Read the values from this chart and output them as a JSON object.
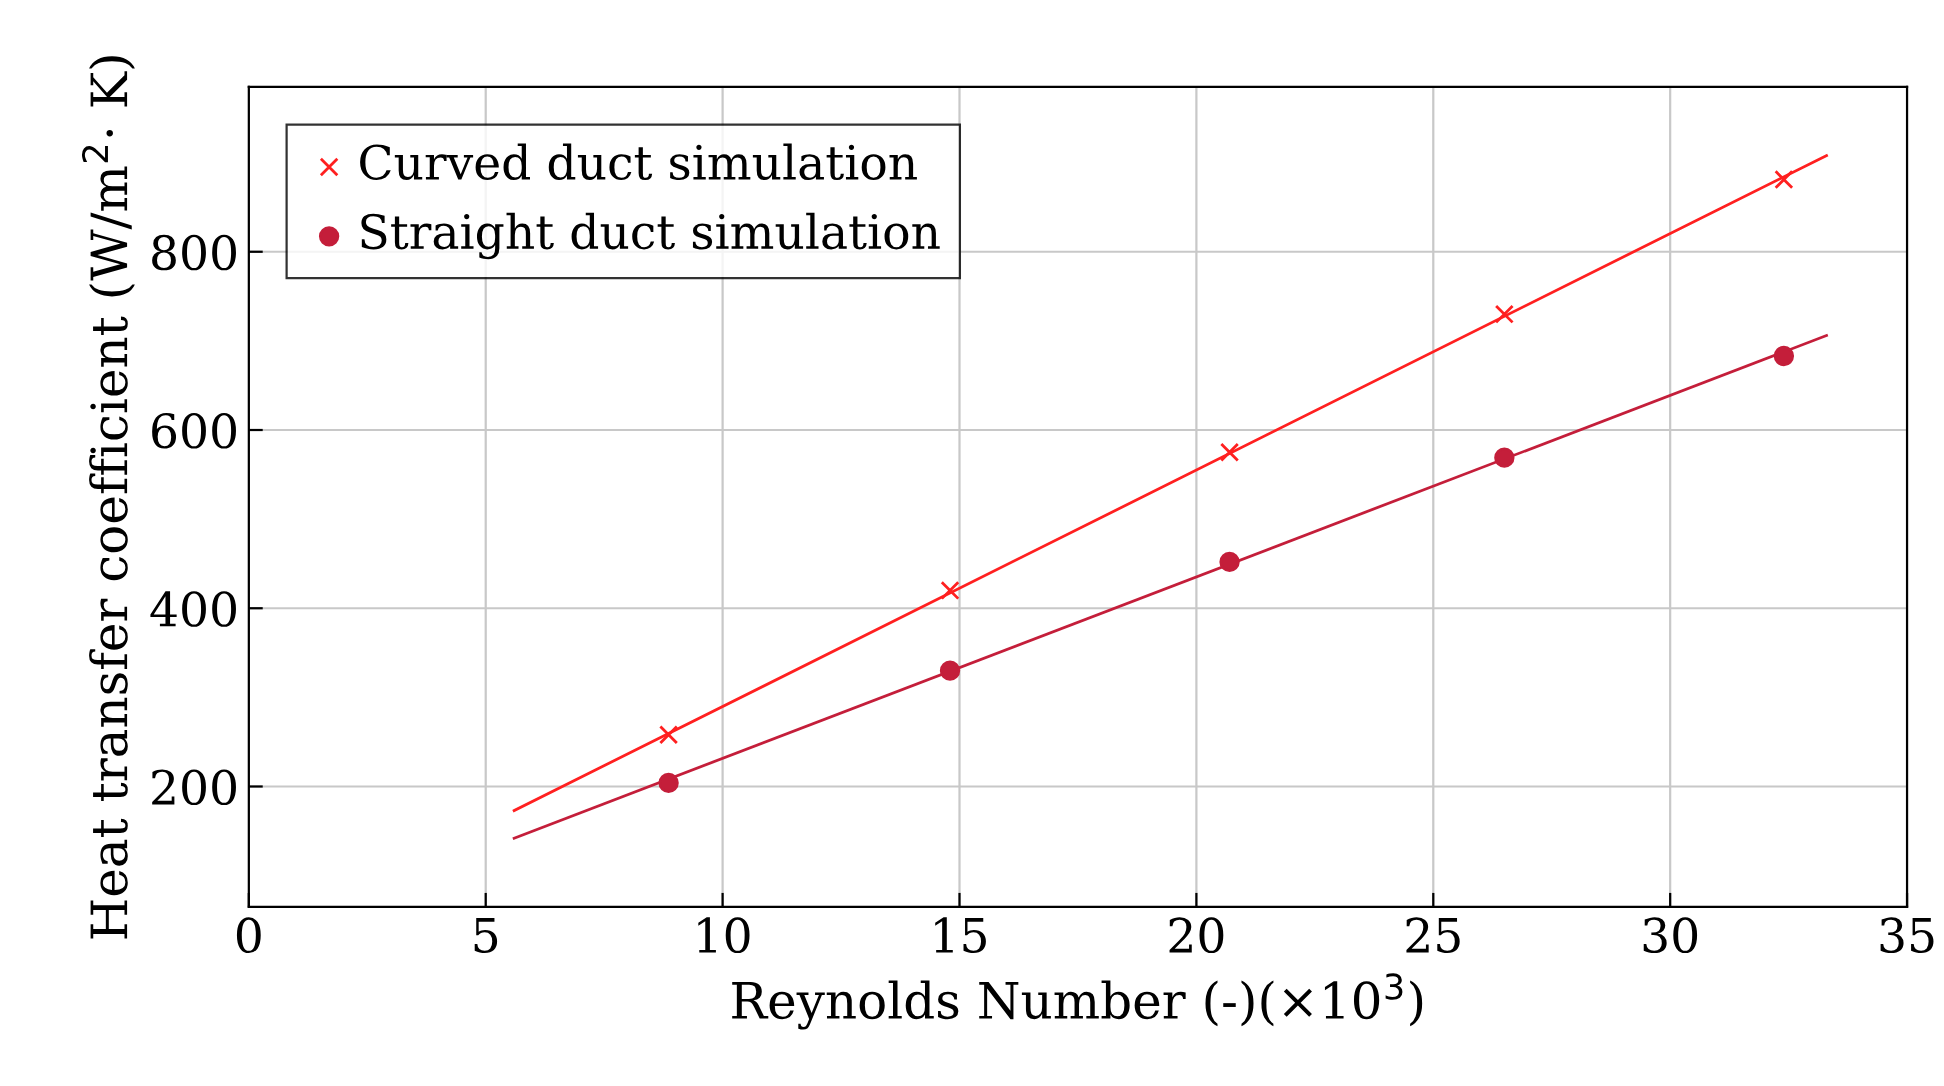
{
  "chart_data": {
    "type": "scatter",
    "xlabel": "Reynolds Number (-)(×10$^{3}$)",
    "ylabel": "Heat transfer coefficient (W/m$^{2}$· K)",
    "xlim": [
      0,
      35
    ],
    "xticks": [
      0,
      5,
      10,
      15,
      20,
      25,
      30,
      35
    ],
    "ylim": [
      65,
      985
    ],
    "yticks": [
      200,
      400,
      600,
      800
    ],
    "grid": true,
    "legend": "top left",
    "series": [
      {
        "name": "Curved duct simulation",
        "marker": "cross",
        "color": "#ff2020",
        "x": [
          8.86,
          14.8,
          20.7,
          26.5,
          32.4
        ],
        "values": [
          258,
          420,
          575,
          730,
          881
        ]
      },
      {
        "name": "Straight duct simulation",
        "marker": "circle",
        "color": "#c41e3a",
        "x": [
          8.86,
          14.8,
          20.7,
          26.5,
          32.4
        ],
        "values": [
          204,
          330,
          452,
          569,
          683
        ]
      },
      {
        "type": "line",
        "marker": "none",
        "color": "#ff2020",
        "x": [
          5.6,
          33.3
        ],
        "values": [
          173,
          908
        ]
      },
      {
        "type": "line",
        "marker": "none",
        "color": "#c41e3a",
        "x": [
          5.6,
          33.3
        ],
        "values": [
          142,
          706
        ]
      }
    ]
  }
}
